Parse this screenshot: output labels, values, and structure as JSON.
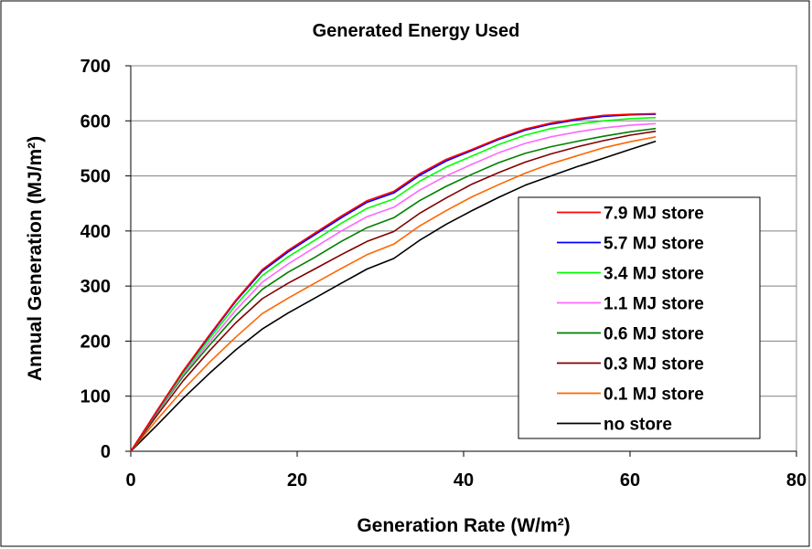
{
  "chart_data": {
    "type": "line",
    "title": "Generated Energy Used",
    "xlabel": "Generation Rate (W/m²)",
    "ylabel": "Annual Generation (MJ/m²)",
    "xlim": [
      0,
      80
    ],
    "ylim": [
      0,
      700
    ],
    "xticks": [
      0,
      20,
      40,
      60,
      80
    ],
    "yticks": [
      0,
      100,
      200,
      300,
      400,
      500,
      600,
      700
    ],
    "grid": "horizontal",
    "legend": "right",
    "x": [
      0,
      3.2,
      6.3,
      9.5,
      12.6,
      15.8,
      18.9,
      22.1,
      25.3,
      28.4,
      31.6,
      34.7,
      37.9,
      41.0,
      44.2,
      47.4,
      50.5,
      53.7,
      56.8,
      60.0,
      63.1
    ],
    "series": [
      {
        "name": "7.9 MJ store",
        "color": "#ff0000",
        "values": [
          0,
          75,
          146,
          212,
          274,
          330,
          365,
          396,
          427,
          455,
          472,
          504,
          530,
          548,
          568,
          585,
          596,
          604,
          610,
          612,
          613
        ]
      },
      {
        "name": "5.7 MJ store",
        "color": "#0000ff",
        "values": [
          0,
          74,
          145,
          210,
          272,
          327,
          362,
          393,
          424,
          452,
          469,
          501,
          527,
          546,
          566,
          583,
          594,
          602,
          608,
          611,
          612
        ]
      },
      {
        "name": "3.4 MJ store",
        "color": "#00ff00",
        "values": [
          0,
          73,
          142,
          205,
          265,
          319,
          353,
          383,
          414,
          441,
          458,
          490,
          516,
          536,
          557,
          574,
          586,
          594,
          600,
          604,
          606
        ]
      },
      {
        "name": "1.1 MJ store",
        "color": "#ff66ff",
        "values": [
          0,
          72,
          139,
          199,
          256,
          307,
          340,
          370,
          400,
          426,
          443,
          474,
          500,
          521,
          542,
          559,
          571,
          580,
          587,
          592,
          595
        ]
      },
      {
        "name": "0.6 MJ store",
        "color": "#008000",
        "values": [
          0,
          71,
          136,
          193,
          246,
          294,
          325,
          352,
          381,
          406,
          424,
          455,
          481,
          503,
          524,
          541,
          553,
          563,
          572,
          580,
          586
        ]
      },
      {
        "name": "0.3 MJ store",
        "color": "#800000",
        "values": [
          0,
          66,
          128,
          183,
          233,
          277,
          305,
          331,
          357,
          381,
          399,
          432,
          460,
          485,
          506,
          525,
          540,
          553,
          564,
          574,
          581
        ]
      },
      {
        "name": "0.1 MJ store",
        "color": "#ff6600",
        "values": [
          0,
          58,
          112,
          162,
          207,
          250,
          278,
          305,
          332,
          357,
          376,
          409,
          437,
          462,
          484,
          505,
          522,
          537,
          551,
          562,
          571
        ]
      },
      {
        "name": "no store",
        "color": "#000000",
        "values": [
          0,
          48,
          96,
          142,
          184,
          222,
          251,
          278,
          305,
          331,
          350,
          383,
          412,
          437,
          461,
          483,
          500,
          517,
          532,
          548,
          563
        ]
      }
    ]
  }
}
